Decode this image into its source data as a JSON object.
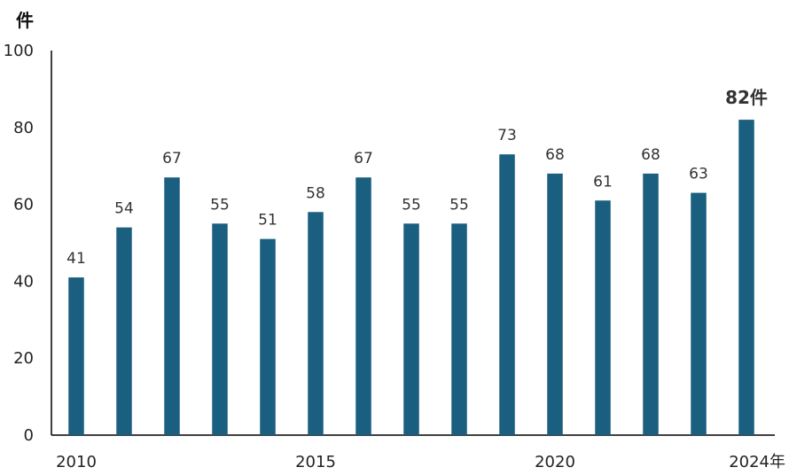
{
  "chart_data": {
    "type": "bar",
    "categories": [
      "2010",
      "2011",
      "2012",
      "2013",
      "2014",
      "2015",
      "2016",
      "2017",
      "2018",
      "2019",
      "2020",
      "2021",
      "2022",
      "2023",
      "2024"
    ],
    "values": [
      41,
      54,
      67,
      55,
      51,
      58,
      67,
      55,
      55,
      73,
      68,
      61,
      68,
      63,
      82
    ],
    "y_unit": "件",
    "yticks": [
      0,
      20,
      40,
      60,
      80,
      100
    ],
    "ylim": [
      0,
      100
    ],
    "x_tick_labels": [
      {
        "category": "2010",
        "text": "2010"
      },
      {
        "category": "2015",
        "text": "2015"
      },
      {
        "category": "2020",
        "text": "2020"
      },
      {
        "category": "2024",
        "text": "2024年"
      }
    ],
    "value_label_suffix_last": "件",
    "bar_color": "#1a5e80",
    "grid": false,
    "legend": "none"
  }
}
